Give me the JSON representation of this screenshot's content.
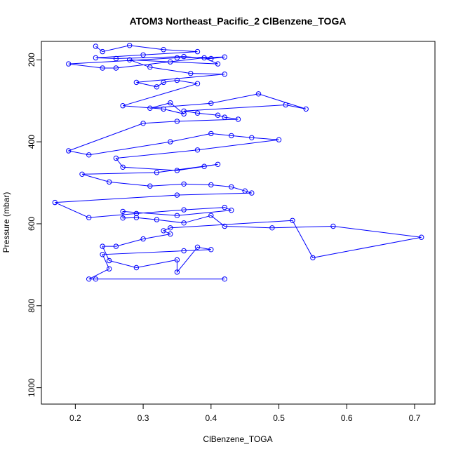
{
  "chart_data": {
    "type": "line",
    "title": "ATOM3 Northeast_Pacific_2 ClBenzene_TOGA",
    "xlabel": "ClBenzene_TOGA",
    "ylabel": "Pressure (mbar)",
    "xlim": [
      0.15,
      0.73
    ],
    "ylim": [
      1040,
      155
    ],
    "y_inverted": true,
    "x_ticks": [
      0.2,
      0.3,
      0.4,
      0.5,
      0.6,
      0.7
    ],
    "x_tick_labels": [
      "0.2",
      "0.3",
      "0.4",
      "0.5",
      "0.6",
      "0.7"
    ],
    "y_ticks": [
      200,
      400,
      600,
      800,
      1000
    ],
    "y_tick_labels": [
      "200",
      "400",
      "600",
      "800",
      "1000"
    ],
    "grid": false,
    "legend": "none",
    "line_color": "#0000ff",
    "marker": "open-circle",
    "series": [
      {
        "x": [
          0.23,
          0.24,
          0.28,
          0.33,
          0.38,
          0.3,
          0.23,
          0.26,
          0.36,
          0.4,
          0.42,
          0.35,
          0.19,
          0.24,
          0.26,
          0.39,
          0.41,
          0.34,
          0.28,
          0.31,
          0.37,
          0.42,
          0.29,
          0.32,
          0.33,
          0.35,
          0.38,
          0.27,
          0.33,
          0.36,
          0.34,
          0.31,
          0.4,
          0.47,
          0.54,
          0.51,
          0.36,
          0.38,
          0.41,
          0.42,
          0.44,
          0.35,
          0.3,
          0.19,
          0.22,
          0.34,
          0.4,
          0.43,
          0.46,
          0.5,
          0.38,
          0.26,
          0.27,
          0.35,
          0.39,
          0.41,
          0.32,
          0.21,
          0.25,
          0.31,
          0.36,
          0.4,
          0.43,
          0.45,
          0.46,
          0.35,
          0.17,
          0.22,
          0.29,
          0.36,
          0.42,
          0.43,
          0.35,
          0.27,
          0.27,
          0.29,
          0.32,
          0.36,
          0.4,
          0.42,
          0.49,
          0.58,
          0.71,
          0.55,
          0.52,
          0.34,
          0.33,
          0.34,
          0.3,
          0.26,
          0.24,
          0.25,
          0.29,
          0.35,
          0.35,
          0.38,
          0.4,
          0.36,
          0.24,
          0.25,
          0.22,
          0.23,
          0.42
        ],
        "y": [
          167,
          180,
          165,
          175,
          180,
          188,
          195,
          197,
          192,
          197,
          193,
          195,
          210,
          220,
          220,
          195,
          210,
          205,
          200,
          218,
          233,
          235,
          255,
          266,
          255,
          250,
          258,
          312,
          320,
          332,
          305,
          318,
          306,
          283,
          320,
          310,
          325,
          330,
          335,
          340,
          345,
          350,
          355,
          422,
          432,
          400,
          380,
          385,
          390,
          395,
          420,
          440,
          462,
          470,
          460,
          455,
          475,
          479,
          498,
          508,
          503,
          505,
          510,
          520,
          525,
          530,
          548,
          585,
          575,
          566,
          560,
          567,
          580,
          570,
          586,
          585,
          590,
          598,
          580,
          606,
          610,
          606,
          633,
          683,
          592,
          610,
          617,
          625,
          637,
          655,
          655,
          690,
          707,
          688,
          718,
          657,
          663,
          666,
          675,
          710,
          735,
          735,
          735
        ]
      }
    ]
  }
}
